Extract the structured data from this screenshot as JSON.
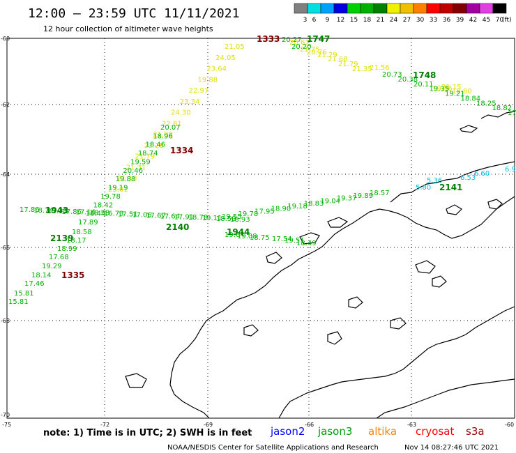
{
  "header": {
    "title": "12:00 – 23:59 UTC 11/11/2021",
    "subtitle": "12 hour collection of altimeter wave heights"
  },
  "legend": {
    "unit": "(ft)",
    "bins": [
      {
        "label": "3",
        "color": "#808080"
      },
      {
        "label": "6",
        "color": "#00e0e0"
      },
      {
        "label": "9",
        "color": "#00a0ff"
      },
      {
        "label": "12",
        "color": "#0000e0"
      },
      {
        "label": "15",
        "color": "#00d000"
      },
      {
        "label": "18",
        "color": "#00b000"
      },
      {
        "label": "21",
        "color": "#008000"
      },
      {
        "label": "24",
        "color": "#f0f000"
      },
      {
        "label": "27",
        "color": "#f0c000"
      },
      {
        "label": "30",
        "color": "#ff8000"
      },
      {
        "label": "33",
        "color": "#ff0000"
      },
      {
        "label": "36",
        "color": "#c00000"
      },
      {
        "label": "39",
        "color": "#800000"
      },
      {
        "label": "42",
        "color": "#a000a0"
      },
      {
        "label": "45",
        "color": "#e040e0"
      },
      {
        "label": "70",
        "color": "#000000"
      }
    ]
  },
  "axes": {
    "lat_labels": [
      "-60",
      "-62",
      "-64",
      "-66",
      "-68",
      "-70"
    ],
    "lon_labels": [
      "-75",
      "-72",
      "-69",
      "-66",
      "-63",
      "-60"
    ]
  },
  "tracks": {
    "yellow_color": "#e0e000",
    "green_color": "#00b000",
    "dkgreen_color": "#008000",
    "cyan_color": "#00c0e0",
    "time_color": "#800000",
    "yellow_values": [
      "21.05",
      "24.05",
      "23.64",
      "19.88",
      "22.97",
      "23.34",
      "24.30",
      "22.81",
      "21.98",
      "22.28",
      "21.79",
      "21.31",
      "21.18",
      "23.01",
      "20.67",
      "21.75",
      "20.76",
      "21.29",
      "21.68",
      "21.79",
      "21.35",
      "21.56"
    ],
    "yellow_right": [
      "19.36",
      "21.15",
      "18.80"
    ],
    "green_a": [
      "20.07",
      "18.96",
      "18.46",
      "18.74",
      "19.59",
      "20.46",
      "19.88",
      "19.19",
      "19.78",
      "18.42",
      "16.44",
      "17.89"
    ],
    "green_b": [
      "20.27",
      "20.20"
    ],
    "green_c": [
      "20.73",
      "20.38",
      "20.11",
      "19.35",
      "19.21",
      "18.84",
      "18.25",
      "18.82",
      "17.6"
    ],
    "green_left": [
      "17.86",
      "18.74",
      "17.21",
      "17.86",
      "17.14",
      "18.58",
      "16.73",
      "17.51",
      "17.06",
      "17.67",
      "17.64",
      "17.91",
      "18.78",
      "19.11",
      "18.50",
      "18.93"
    ],
    "green_d": [
      "19.55",
      "19.78",
      "17.95",
      "18.90",
      "19.18",
      "18.83",
      "19.04",
      "19.37",
      "19.89",
      "18.57"
    ],
    "green_e": [
      "19.64",
      "19.08",
      "18.75",
      "17.54",
      "19.51",
      "18.49",
      "18.99",
      "17.68",
      "19.29",
      "18.14",
      "17.46",
      "15.81",
      "18.17",
      "18.58"
    ],
    "cyan_values": [
      "5.80",
      "5.36",
      "6.53",
      "6.60",
      "6.9"
    ],
    "times": {
      "t1333": "1333",
      "t1334": "1334",
      "t1335": "1335"
    },
    "dk_times": {
      "t1747": "1747",
      "t1748": "1748",
      "t1943": "1943",
      "t2139": "2139",
      "t2140": "2140",
      "t1944": "1944",
      "t2141": "2141"
    }
  },
  "footer": {
    "note": "note:  1) Time is in UTC;  2) SWH is in feet",
    "satellites": [
      {
        "name": "jason2",
        "color": "#0000ff"
      },
      {
        "name": "jason3",
        "color": "#00a000"
      },
      {
        "name": "altika",
        "color": "#ff8000"
      },
      {
        "name": "cryosat",
        "color": "#ff0000"
      },
      {
        "name": "s3a",
        "color": "#a00000"
      }
    ],
    "credit": "NOAA/NESDIS Center for Satellite Applications and Research",
    "timestamp": "Nov 14 08:27:46 UTC 2021"
  }
}
